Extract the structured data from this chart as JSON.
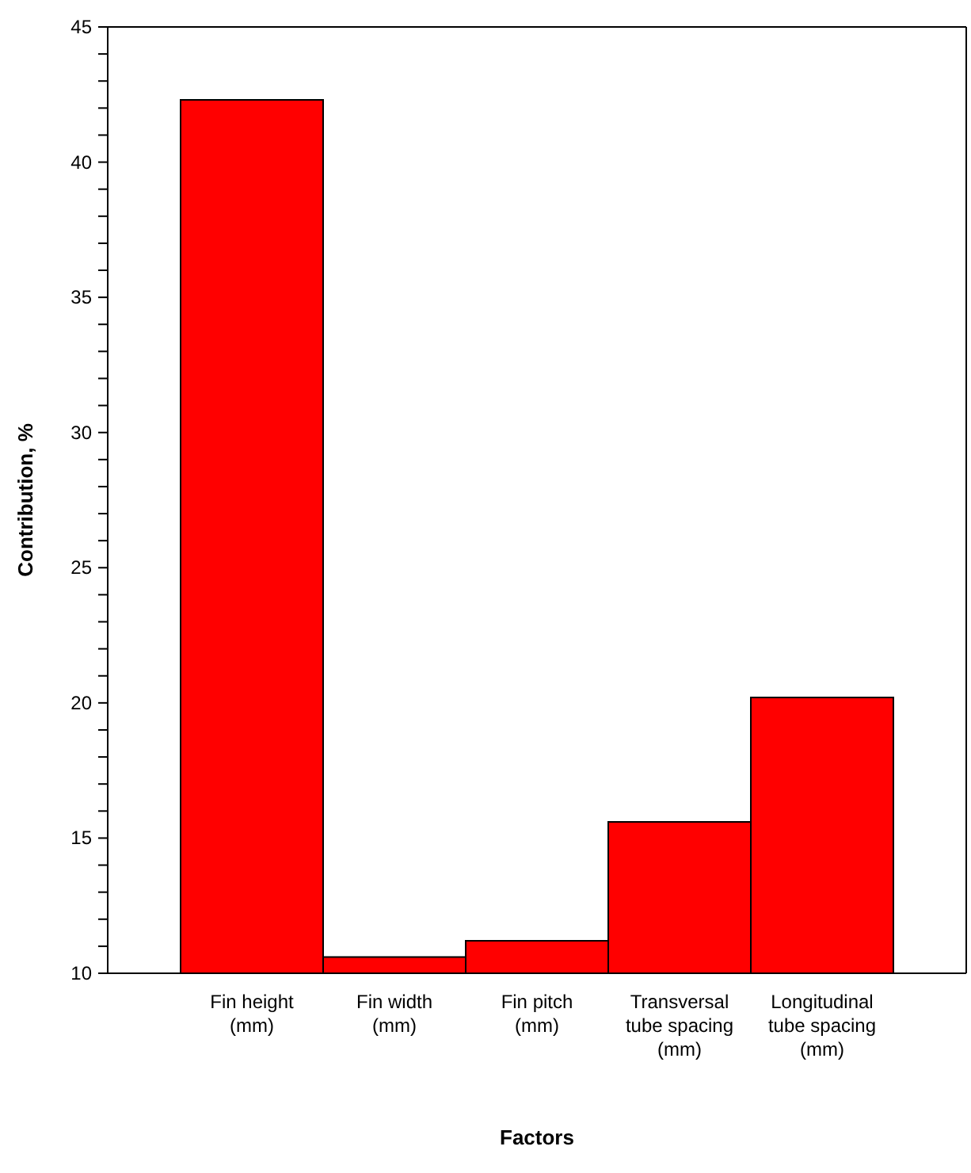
{
  "chart_data": {
    "type": "bar",
    "xlabel": "Factors",
    "ylabel": "Contribution, %",
    "categories": [
      "Fin height (mm)",
      "Fin width (mm)",
      "Fin pitch (mm)",
      "Transversal tube spacing (mm)",
      "Longitudinal tube spacing (mm)"
    ],
    "values": [
      42.3,
      10.6,
      11.2,
      15.6,
      20.2
    ],
    "color": "#ff0000",
    "ylim": [
      10,
      45
    ],
    "yticks": [
      10,
      {
        "value": 11,
        "label": null
      },
      {
        "value": 12,
        "label": null
      },
      {
        "value": 13,
        "label": null
      },
      {
        "value": 14,
        "label": null
      },
      15,
      {
        "value": 16,
        "label": null
      },
      {
        "value": 17,
        "label": null
      },
      {
        "value": 18,
        "label": null
      },
      {
        "value": 19,
        "label": null
      },
      20,
      {
        "value": 21,
        "label": null
      },
      {
        "value": 22,
        "label": null
      },
      {
        "value": 23,
        "label": null
      },
      {
        "value": 24,
        "label": null
      },
      25,
      {
        "value": 26,
        "label": null
      },
      {
        "value": 27,
        "label": null
      },
      {
        "value": 28,
        "label": null
      },
      {
        "value": 29,
        "label": null
      },
      30,
      {
        "value": 31,
        "label": null
      },
      {
        "value": 32,
        "label": null
      },
      {
        "value": 33,
        "label": null
      },
      {
        "value": 34,
        "label": null
      },
      35,
      {
        "value": 36,
        "label": null
      },
      {
        "value": 37,
        "label": null
      },
      {
        "value": 38,
        "label": null
      },
      {
        "value": 39,
        "label": null
      },
      40,
      {
        "value": 41,
        "label": null
      },
      {
        "value": 42,
        "label": null
      },
      {
        "value": 43,
        "label": null
      },
      {
        "value": 44,
        "label": null
      },
      45
    ],
    "grid": false,
    "legend": false
  }
}
